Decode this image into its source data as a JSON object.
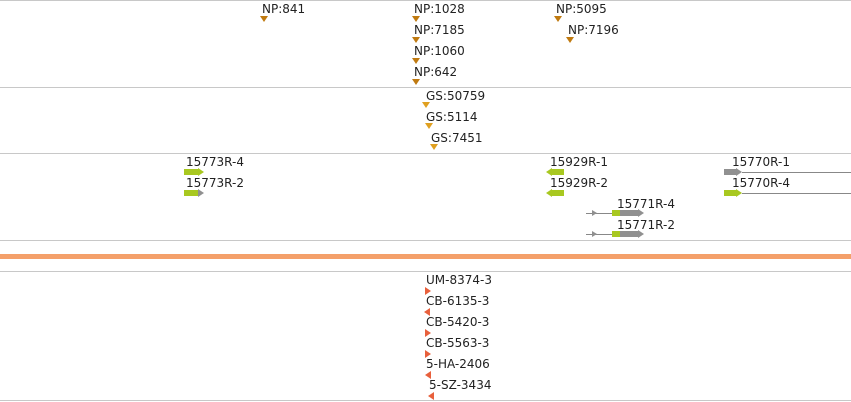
{
  "tracks": {
    "np": {
      "labels": [
        "NP:841",
        "NP:1028",
        "NP:7185",
        "NP:1060",
        "NP:642",
        "NP:5095",
        "NP:7196"
      ]
    },
    "gs": {
      "labels": [
        "GS:50759",
        "GS:5114",
        "GS:7451"
      ]
    },
    "genes": {
      "labels": [
        "15773R-4",
        "15773R-2",
        "15929R-1",
        "15929R-2",
        "15771R-4",
        "15771R-2",
        "15770R-1",
        "15770R-4"
      ]
    },
    "samples": {
      "labels": [
        "UM-8374-3",
        "CB-6135-3",
        "CB-5420-3",
        "CB-5563-3",
        "5-HA-2406",
        "5-SZ-3434"
      ]
    }
  },
  "colors": {
    "np_marker": "#c07a10",
    "gs_marker": "#e0a020",
    "gene_green": "#a8c820",
    "gene_gray": "#909090",
    "sample_marker": "#e8603c",
    "divider": "#f4a06a"
  }
}
